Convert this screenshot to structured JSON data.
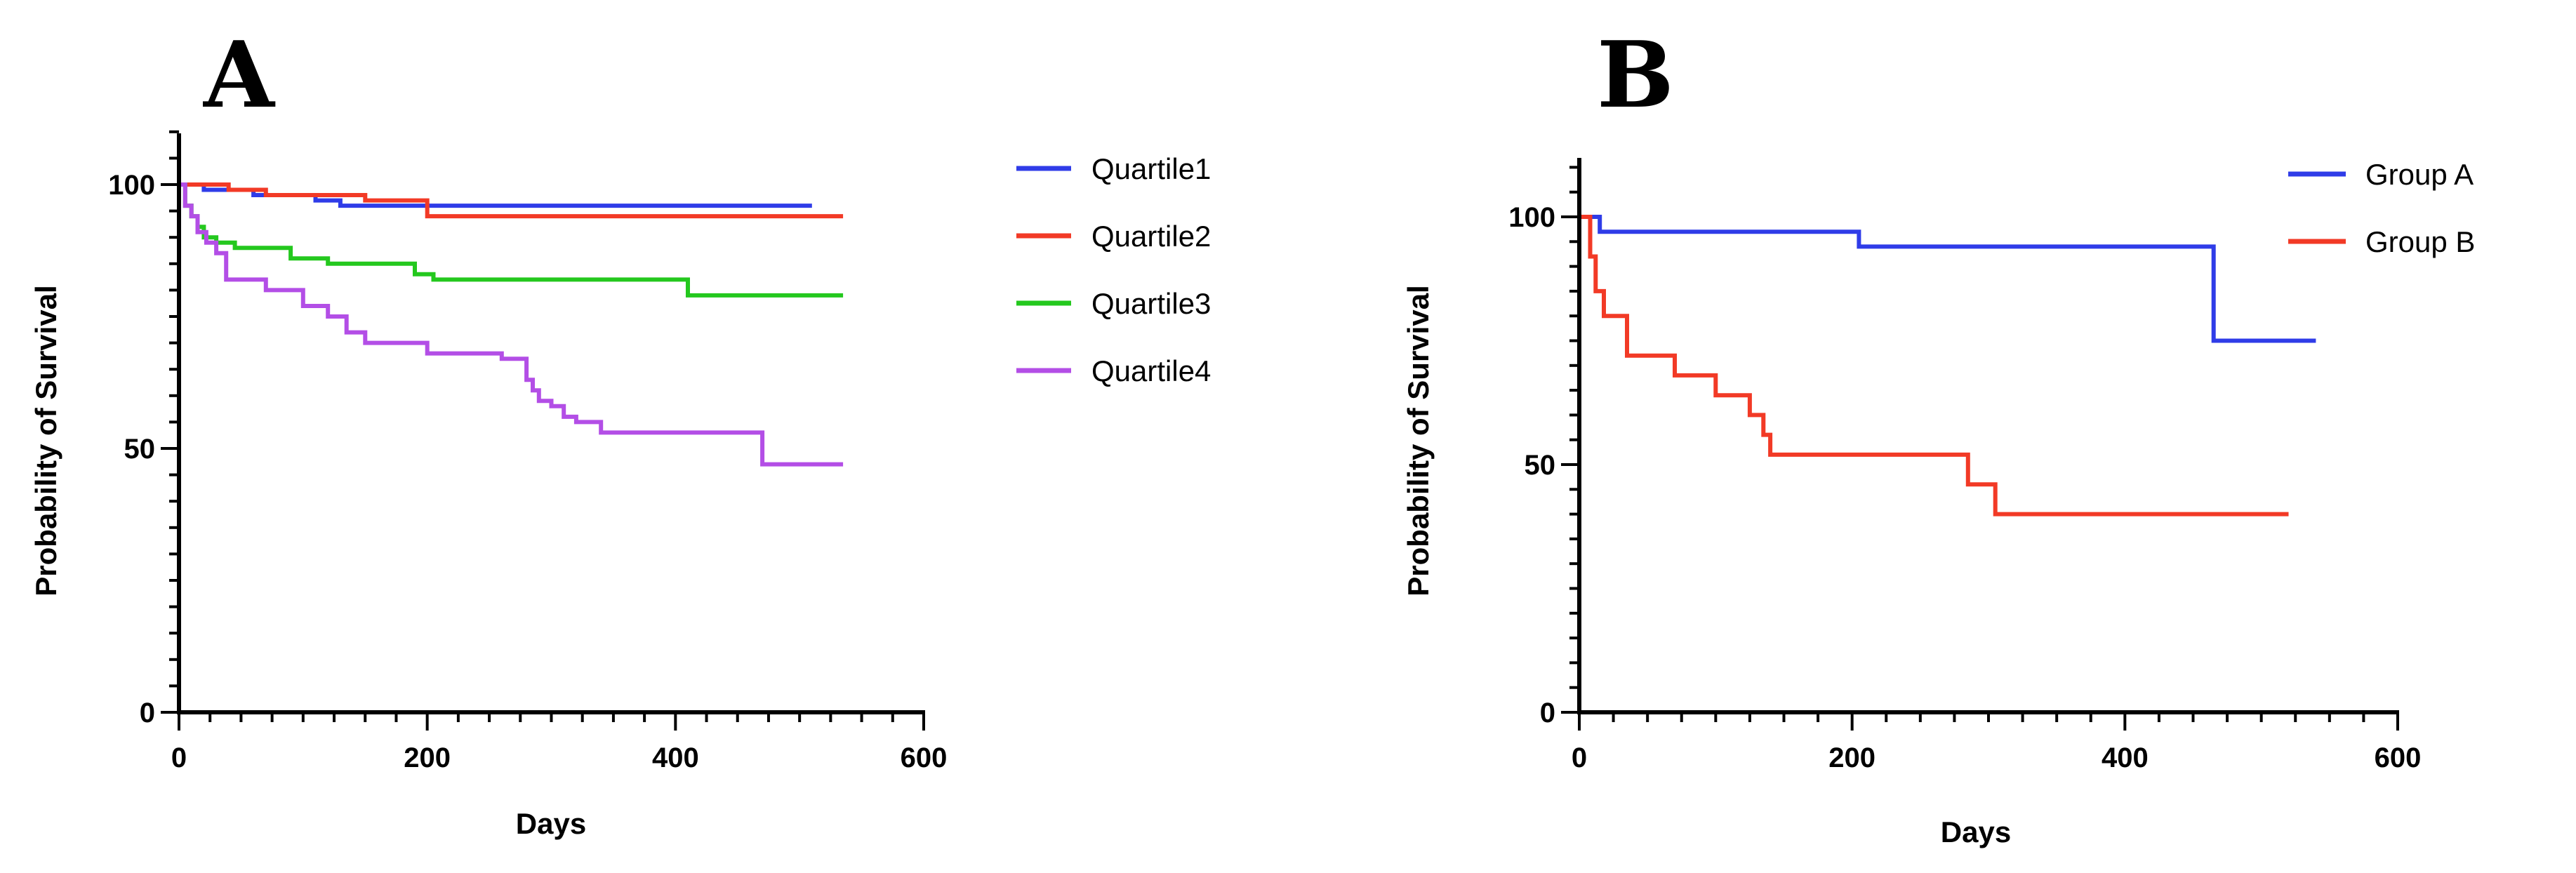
{
  "chart_data": [
    {
      "type": "line",
      "step": true,
      "panel_label": "A",
      "title": "",
      "xlabel": "Days",
      "ylabel": "Probability of Survival",
      "xlim": [
        0,
        600
      ],
      "ylim": [
        0,
        110
      ],
      "xticks": [
        0,
        200,
        400,
        600
      ],
      "yticks": [
        0,
        50,
        100
      ],
      "grid": false,
      "legend_position": "right",
      "series": [
        {
          "name": "Quartile1",
          "color": "#2f3ce8",
          "x": [
            0,
            20,
            60,
            110,
            130,
            200,
            510
          ],
          "y": [
            100,
            99,
            98,
            97,
            96,
            96,
            96
          ]
        },
        {
          "name": "Quartile2",
          "color": "#f23a26",
          "x": [
            0,
            40,
            70,
            150,
            200,
            535
          ],
          "y": [
            100,
            99,
            98,
            97,
            94,
            94
          ]
        },
        {
          "name": "Quartile3",
          "color": "#24c81e",
          "x": [
            0,
            5,
            10,
            15,
            20,
            30,
            45,
            90,
            120,
            190,
            205,
            410,
            535
          ],
          "y": [
            100,
            96,
            94,
            92,
            90,
            89,
            88,
            86,
            85,
            83,
            82,
            79,
            79
          ]
        },
        {
          "name": "Quartile4",
          "color": "#b34ee6",
          "x": [
            0,
            5,
            10,
            15,
            22,
            30,
            38,
            70,
            100,
            120,
            135,
            150,
            200,
            260,
            280,
            285,
            290,
            300,
            310,
            320,
            340,
            460,
            470,
            535
          ],
          "y": [
            100,
            96,
            94,
            91,
            89,
            87,
            82,
            80,
            77,
            75,
            72,
            70,
            68,
            67,
            63,
            61,
            59,
            58,
            56,
            55,
            53,
            53,
            47,
            47
          ]
        }
      ]
    },
    {
      "type": "line",
      "step": true,
      "panel_label": "B",
      "title": "",
      "xlabel": "Days",
      "ylabel": "Probability of Survival",
      "xlim": [
        0,
        600
      ],
      "ylim": [
        0,
        110
      ],
      "xticks": [
        0,
        200,
        400,
        600
      ],
      "yticks": [
        0,
        50,
        100
      ],
      "grid": false,
      "legend_position": "top-right",
      "series": [
        {
          "name": "Group A",
          "color": "#2f3ce8",
          "x": [
            0,
            15,
            205,
            465,
            540
          ],
          "y": [
            100,
            97,
            94,
            75,
            75
          ]
        },
        {
          "name": "Group B",
          "color": "#f23a26",
          "x": [
            0,
            8,
            12,
            18,
            35,
            55,
            70,
            100,
            125,
            135,
            140,
            150,
            285,
            305,
            520
          ],
          "y": [
            100,
            92,
            85,
            80,
            72,
            72,
            68,
            64,
            60,
            56,
            52,
            52,
            46,
            40,
            40
          ]
        }
      ]
    }
  ]
}
